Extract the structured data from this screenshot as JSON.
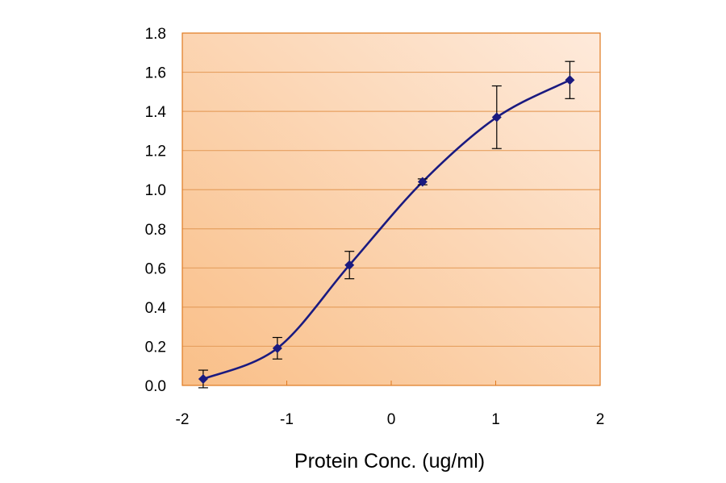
{
  "chart_data": {
    "type": "line",
    "title": "",
    "xlabel": "Protein Conc. (ug/ml)",
    "ylabel": "",
    "xlim": [
      -2,
      2
    ],
    "ylim": [
      0,
      1.8
    ],
    "xticks": [
      -2,
      -1,
      0,
      1,
      2
    ],
    "xtick_labels": [
      "-2",
      "-1",
      "0",
      "1",
      "2"
    ],
    "yticks": [
      0,
      0.2,
      0.4,
      0.6,
      0.8,
      1.0,
      1.2,
      1.4,
      1.6,
      1.8
    ],
    "ytick_labels": [
      "0.0",
      "0.2",
      "0.4",
      "0.6",
      "0.8",
      "1.0",
      "1.2",
      "1.4",
      "1.6",
      "1.8"
    ],
    "grid": "horizontal",
    "smoothed": true,
    "series": [
      {
        "x": [
          -1.8,
          -1.09,
          -0.4,
          0.3,
          1.01,
          1.71
        ],
        "y": [
          0.033,
          0.19,
          0.615,
          1.04,
          1.37,
          1.56
        ],
        "error": [
          0.045,
          0.055,
          0.07,
          0.015,
          0.16,
          0.095
        ],
        "color": "#1a1a80",
        "marker": "diamond"
      }
    ],
    "colors": {
      "plot_bg_dark": "#f9bf88",
      "plot_bg_light": "#feeadb",
      "grid": "#e6a060",
      "border": "#e07a20",
      "errorbar": "#000000"
    }
  }
}
